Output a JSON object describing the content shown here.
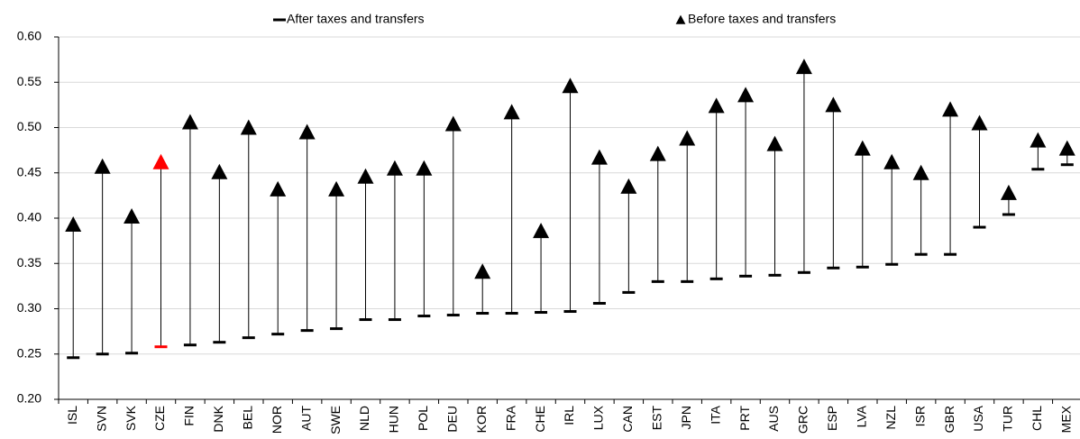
{
  "chart_data": {
    "type": "range_markers",
    "categories": [
      "ISL",
      "SVN",
      "SVK",
      "CZE",
      "FIN",
      "DNK",
      "BEL",
      "NOR",
      "AUT",
      "SWE",
      "NLD",
      "HUN",
      "POL",
      "DEU",
      "KOR",
      "FRA",
      "CHE",
      "IRL",
      "LUX",
      "CAN",
      "EST",
      "JPN",
      "ITA",
      "PRT",
      "AUS",
      "GRC",
      "ESP",
      "LVA",
      "NZL",
      "ISR",
      "GBR",
      "USA",
      "TUR",
      "CHL",
      "MEX"
    ],
    "series": [
      {
        "name": "After taxes and transfers",
        "color": "#000000",
        "marker": "dash",
        "values": [
          0.246,
          0.25,
          0.251,
          0.258,
          0.26,
          0.263,
          0.268,
          0.272,
          0.276,
          0.278,
          0.288,
          0.288,
          0.292,
          0.293,
          0.295,
          0.295,
          0.296,
          0.297,
          0.306,
          0.318,
          0.33,
          0.33,
          0.333,
          0.336,
          0.337,
          0.34,
          0.345,
          0.346,
          0.349,
          0.36,
          0.36,
          0.39,
          0.404,
          0.454,
          0.459
        ]
      },
      {
        "name": "Before taxes and transfers",
        "color": "#000000",
        "marker": "triangle",
        "values": [
          0.393,
          0.457,
          0.402,
          0.462,
          0.506,
          0.451,
          0.5,
          0.432,
          0.495,
          0.432,
          0.446,
          0.455,
          0.455,
          0.504,
          0.341,
          0.517,
          0.386,
          0.546,
          0.467,
          0.435,
          0.471,
          0.488,
          0.524,
          0.536,
          0.482,
          0.567,
          0.525,
          0.477,
          0.462,
          0.45,
          0.52,
          0.505,
          0.428,
          0.486,
          0.477
        ]
      }
    ],
    "highlight_index": 3,
    "highlight_color": "#ff0000",
    "ylim": [
      0.2,
      0.6
    ],
    "yticks": [
      {
        "value": 0.2,
        "label": "0.20"
      },
      {
        "value": 0.25,
        "label": "0.25"
      },
      {
        "value": 0.3,
        "label": "0.30"
      },
      {
        "value": 0.35,
        "label": "0.35"
      },
      {
        "value": 0.4,
        "label": "0.40"
      },
      {
        "value": 0.45,
        "label": "0.45"
      },
      {
        "value": 0.5,
        "label": "0.50"
      },
      {
        "value": 0.55,
        "label": "0.55"
      },
      {
        "value": 0.6,
        "label": "0.60"
      }
    ],
    "grid": true,
    "legend": "top"
  }
}
